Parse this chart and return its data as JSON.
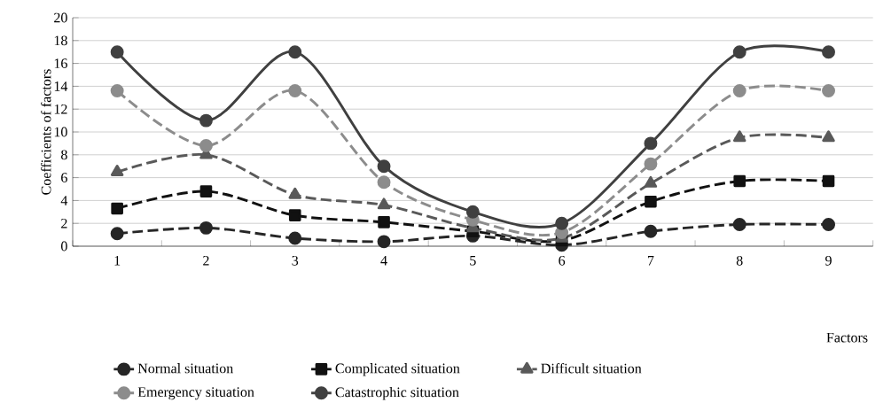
{
  "chart_data": {
    "type": "line",
    "ylabel": "Coefficients of factors",
    "xlabel": "Factors",
    "categories": [
      "1",
      "2",
      "3",
      "4",
      "5",
      "6",
      "7",
      "8",
      "9"
    ],
    "ylim": [
      0,
      20
    ],
    "yticks": [
      0,
      2,
      4,
      6,
      8,
      10,
      12,
      14,
      16,
      18,
      20
    ],
    "grid": "y",
    "legend": "bottom",
    "series": [
      {
        "name": "Normal situation",
        "color": "#262626",
        "marker": "circle",
        "line_style": "dashed",
        "values": [
          1.1,
          1.6,
          0.7,
          0.4,
          0.9,
          0.1,
          1.3,
          1.9,
          1.9
        ]
      },
      {
        "name": "Complicated situation",
        "color": "#111111",
        "marker": "square",
        "line_style": "dashed",
        "values": [
          3.3,
          4.8,
          2.7,
          2.1,
          1.3,
          0.5,
          3.9,
          5.7,
          5.7
        ]
      },
      {
        "name": "Difficult situation",
        "color": "#595959",
        "marker": "triangle",
        "line_style": "dashed",
        "values": [
          6.5,
          8.0,
          4.5,
          3.6,
          1.6,
          0.7,
          5.5,
          9.5,
          9.5
        ]
      },
      {
        "name": "Emergency situation",
        "color": "#8c8c8c",
        "marker": "circle",
        "line_style": "dashed",
        "values": [
          13.6,
          8.8,
          13.6,
          5.6,
          2.3,
          1.2,
          7.2,
          13.6,
          13.6
        ]
      },
      {
        "name": "Catastrophic situation",
        "color": "#404040",
        "marker": "circle",
        "line_style": "solid",
        "values": [
          17,
          11,
          17,
          7,
          3,
          2,
          9,
          17,
          17
        ]
      }
    ]
  }
}
